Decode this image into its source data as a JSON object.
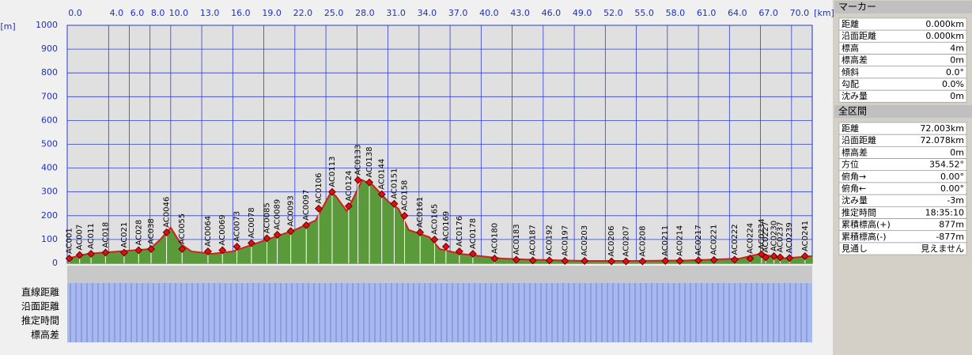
{
  "chart_data": {
    "type": "area",
    "x_label": "[km]",
    "y_label": "[m]",
    "xlim": [
      0,
      72
    ],
    "ylim": [
      0,
      1000
    ],
    "xticks": [
      {
        "value": 0,
        "label": "0.0"
      },
      {
        "value": 4,
        "label": "4.0"
      },
      {
        "value": 6,
        "label": "6.0"
      },
      {
        "value": 8,
        "label": "8.0"
      },
      {
        "value": 10,
        "label": "10.0"
      },
      {
        "value": 13,
        "label": "13.0"
      },
      {
        "value": 16,
        "label": "16.0"
      },
      {
        "value": 19,
        "label": "19.0"
      },
      {
        "value": 22,
        "label": "22.0"
      },
      {
        "value": 25,
        "label": "25.0"
      },
      {
        "value": 28,
        "label": "28.0"
      },
      {
        "value": 31,
        "label": "31.0"
      },
      {
        "value": 34,
        "label": "34.0"
      },
      {
        "value": 37,
        "label": "37.0"
      },
      {
        "value": 40,
        "label": "40.0"
      },
      {
        "value": 43,
        "label": "43.0"
      },
      {
        "value": 46,
        "label": "46.0"
      },
      {
        "value": 49,
        "label": "49.0"
      },
      {
        "value": 52,
        "label": "52.0"
      },
      {
        "value": 55,
        "label": "55.0"
      },
      {
        "value": 58,
        "label": "58.0"
      },
      {
        "value": 61,
        "label": "61.0"
      },
      {
        "value": 64,
        "label": "64.0"
      },
      {
        "value": 67,
        "label": "67.0"
      },
      {
        "value": 70,
        "label": "70.0"
      }
    ],
    "yticks": [
      0,
      100,
      200,
      300,
      400,
      500,
      600,
      700,
      800,
      900,
      1000
    ],
    "grid": true,
    "x": [
      0,
      2,
      5,
      8,
      9,
      10,
      11,
      12,
      14,
      16,
      18,
      20,
      22,
      24,
      25,
      25.5,
      26,
      27,
      27.5,
      28.5,
      29.5,
      31,
      32,
      33,
      35,
      36,
      38,
      40,
      42,
      45,
      50,
      55,
      60,
      65,
      67,
      69,
      72
    ],
    "series": [
      {
        "color": "#5a9a3a",
        "line_color": "#d02020",
        "values": [
          20,
          40,
          50,
          60,
          100,
          150,
          80,
          50,
          40,
          50,
          80,
          110,
          140,
          180,
          260,
          300,
          280,
          220,
          260,
          350,
          330,
          260,
          230,
          140,
          110,
          60,
          40,
          30,
          20,
          15,
          10,
          10,
          12,
          20,
          40,
          20,
          30
        ]
      }
    ],
    "waypoints": {
      "names": [
        "AC001",
        "AC007",
        "AC011",
        "AC018",
        "AC021",
        "AC028",
        "AC038",
        "AC0046",
        "AC0055",
        "AC0064",
        "AC0069",
        "AC0073",
        "AC0078",
        "AC0085",
        "AC0089",
        "AC0093",
        "AC0097",
        "AC0106",
        "AC0113",
        "AC0124",
        "AC0133",
        "AC0138",
        "AC0144",
        "AC0151",
        "AC0158",
        "AC0161",
        "AC0165",
        "AC0169",
        "AC0176",
        "AC0178",
        "AC0180",
        "AC0183",
        "AC0187",
        "AC0192",
        "AC0197",
        "AC0203",
        "AC0206",
        "AC0207",
        "AC0208",
        "AC0211",
        "AC0214",
        "AC0217",
        "AC0221",
        "AC0222",
        "AC0224",
        "AC0227",
        "AC0230",
        "AC0234",
        "AC0237",
        "AC0239",
        "AC0241"
      ],
      "x": [
        0.2,
        1.2,
        2.3,
        3.7,
        5.5,
        6.9,
        8.1,
        9.6,
        11.1,
        13.6,
        15,
        16.4,
        17.8,
        19.3,
        20.3,
        21.6,
        23.1,
        24.3,
        25.6,
        27.2,
        28.1,
        29.2,
        30.4,
        31.6,
        32.6,
        34.1,
        35.5,
        36.6,
        37.9,
        39.2,
        41.3,
        43.4,
        45,
        46.6,
        48.1,
        50,
        52.6,
        54,
        55.6,
        57.8,
        59.2,
        61,
        62.5,
        64.5,
        66,
        67.5,
        68.3,
        67.1,
        68.9,
        69.8,
        71.3
      ],
      "values": [
        20,
        35,
        40,
        45,
        45,
        55,
        60,
        130,
        60,
        50,
        55,
        70,
        85,
        105,
        120,
        135,
        160,
        230,
        300,
        240,
        350,
        340,
        290,
        250,
        200,
        130,
        100,
        70,
        50,
        40,
        20,
        15,
        12,
        12,
        10,
        10,
        8,
        8,
        8,
        10,
        10,
        12,
        14,
        15,
        20,
        25,
        30,
        38,
        25,
        22,
        30
      ]
    }
  },
  "table": {
    "row_labels": [
      "直線距離",
      "沿面距離",
      "推定時間",
      "標高差"
    ]
  },
  "marker_panel": {
    "title": "マーカー",
    "rows": [
      [
        "距離",
        "0.000km"
      ],
      [
        "沿面距離",
        "0.000km"
      ],
      [
        "標高",
        "4m"
      ],
      [
        "標高差",
        "0m"
      ],
      [
        "傾斜",
        "0.0°"
      ],
      [
        "勾配",
        "0.0%"
      ],
      [
        "沈み量",
        "0m"
      ]
    ]
  },
  "total_panel": {
    "title": "全区間",
    "rows": [
      [
        "距離",
        "72.003km"
      ],
      [
        "沿面距離",
        "72.078km"
      ],
      [
        "標高差",
        "0m"
      ],
      [
        "方位",
        "354.52°"
      ],
      [
        "俯角→",
        "0.00°"
      ],
      [
        "俯角←",
        "0.00°"
      ],
      [
        "沈み量",
        "-3m"
      ],
      [
        "推定時間",
        "18:35:10"
      ],
      [
        "累積標高(+)",
        "877m"
      ],
      [
        "累積標高(-)",
        "-877m"
      ],
      [
        "見通し",
        "見えません"
      ]
    ]
  }
}
